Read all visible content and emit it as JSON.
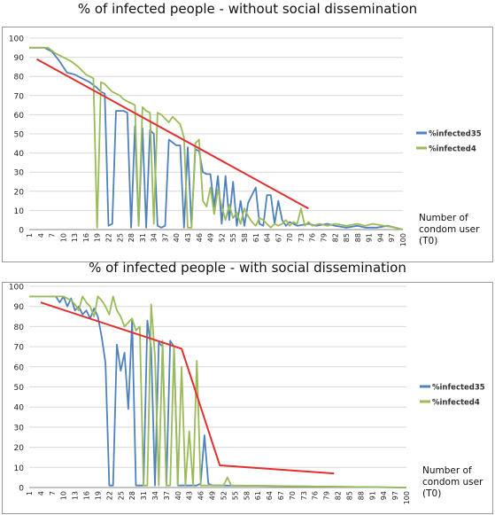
{
  "chart_data": [
    {
      "type": "line",
      "title": "% of infected people - without social dissemination",
      "xlabel": "Number of condom user (T0)",
      "ylabel": "",
      "ylim": [
        0,
        100
      ],
      "yticks": [
        0,
        10,
        20,
        30,
        40,
        50,
        60,
        70,
        80,
        90,
        100
      ],
      "xticks": [
        1,
        4,
        7,
        10,
        13,
        16,
        19,
        22,
        25,
        28,
        31,
        34,
        37,
        40,
        43,
        46,
        49,
        52,
        55,
        58,
        61,
        64,
        67,
        70,
        73,
        76,
        79,
        82,
        85,
        88,
        91,
        94,
        97,
        100
      ],
      "grid": true,
      "legend_position": "right",
      "series": [
        {
          "name": "%infected35",
          "color": "#4f81bd",
          "points": [
            [
              1,
              95
            ],
            [
              5,
              95
            ],
            [
              7,
              93
            ],
            [
              9,
              88
            ],
            [
              11,
              82
            ],
            [
              13,
              81
            ],
            [
              15,
              79
            ],
            [
              17,
              77
            ],
            [
              19,
              74
            ],
            [
              20,
              72
            ],
            [
              21,
              71
            ],
            [
              22,
              2
            ],
            [
              23,
              3
            ],
            [
              24,
              62
            ],
            [
              26,
              62
            ],
            [
              27,
              61
            ],
            [
              28,
              1
            ],
            [
              29,
              54
            ],
            [
              30,
              2
            ],
            [
              31,
              53
            ],
            [
              32,
              1
            ],
            [
              33,
              52
            ],
            [
              34,
              50
            ],
            [
              35,
              2
            ],
            [
              36,
              1
            ],
            [
              37,
              2
            ],
            [
              38,
              47
            ],
            [
              40,
              44
            ],
            [
              41,
              44
            ],
            [
              42,
              1
            ],
            [
              43,
              43
            ],
            [
              44,
              2
            ],
            [
              45,
              42
            ],
            [
              46,
              41
            ],
            [
              47,
              30
            ],
            [
              48,
              29
            ],
            [
              49,
              29
            ],
            [
              50,
              12
            ],
            [
              51,
              28
            ],
            [
              52,
              3
            ],
            [
              53,
              28
            ],
            [
              54,
              5
            ],
            [
              55,
              25
            ],
            [
              56,
              2
            ],
            [
              57,
              15
            ],
            [
              58,
              2
            ],
            [
              59,
              14
            ],
            [
              60,
              18
            ],
            [
              61,
              22
            ],
            [
              62,
              3
            ],
            [
              63,
              2
            ],
            [
              64,
              18
            ],
            [
              65,
              18
            ],
            [
              66,
              3
            ],
            [
              67,
              15
            ],
            [
              68,
              5
            ],
            [
              69,
              2
            ],
            [
              70,
              4
            ],
            [
              72,
              2
            ],
            [
              75,
              3
            ],
            [
              77,
              2
            ],
            [
              80,
              3
            ],
            [
              82,
              2
            ],
            [
              85,
              1
            ],
            [
              88,
              2
            ],
            [
              90,
              1
            ],
            [
              93,
              1
            ],
            [
              96,
              2
            ],
            [
              100,
              0
            ]
          ]
        },
        {
          "name": "%infected4",
          "color": "#9bbb59",
          "points": [
            [
              1,
              95
            ],
            [
              6,
              95
            ],
            [
              8,
              92
            ],
            [
              10,
              90
            ],
            [
              12,
              88
            ],
            [
              14,
              85
            ],
            [
              16,
              81
            ],
            [
              18,
              79
            ],
            [
              19,
              1
            ],
            [
              20,
              77
            ],
            [
              21,
              76
            ],
            [
              22,
              74
            ],
            [
              23,
              72
            ],
            [
              25,
              70
            ],
            [
              26,
              68
            ],
            [
              27,
              67
            ],
            [
              28,
              66
            ],
            [
              29,
              65
            ],
            [
              30,
              2
            ],
            [
              31,
              64
            ],
            [
              32,
              62
            ],
            [
              33,
              61
            ],
            [
              34,
              3
            ],
            [
              35,
              61
            ],
            [
              36,
              60
            ],
            [
              37,
              58
            ],
            [
              38,
              56
            ],
            [
              39,
              59
            ],
            [
              40,
              57
            ],
            [
              41,
              55
            ],
            [
              42,
              48
            ],
            [
              43,
              1
            ],
            [
              44,
              1
            ],
            [
              45,
              45
            ],
            [
              46,
              47
            ],
            [
              47,
              15
            ],
            [
              48,
              12
            ],
            [
              49,
              22
            ],
            [
              50,
              8
            ],
            [
              51,
              21
            ],
            [
              52,
              12
            ],
            [
              53,
              5
            ],
            [
              54,
              13
            ],
            [
              55,
              6
            ],
            [
              56,
              9
            ],
            [
              57,
              3
            ],
            [
              58,
              11
            ],
            [
              59,
              7
            ],
            [
              60,
              4
            ],
            [
              61,
              2
            ],
            [
              62,
              6
            ],
            [
              63,
              5
            ],
            [
              64,
              3
            ],
            [
              65,
              1
            ],
            [
              66,
              3
            ],
            [
              67,
              2
            ],
            [
              68,
              3
            ],
            [
              69,
              5
            ],
            [
              70,
              2
            ],
            [
              71,
              4
            ],
            [
              72,
              3
            ],
            [
              73,
              11
            ],
            [
              74,
              2
            ],
            [
              75,
              4
            ],
            [
              76,
              2
            ],
            [
              78,
              3
            ],
            [
              80,
              2
            ],
            [
              82,
              3
            ],
            [
              85,
              2
            ],
            [
              88,
              3
            ],
            [
              90,
              2
            ],
            [
              92,
              3
            ],
            [
              95,
              2
            ],
            [
              98,
              1
            ],
            [
              100,
              0
            ]
          ]
        },
        {
          "name": "",
          "color": "#e03030",
          "legend": false,
          "points": [
            [
              3,
              89
            ],
            [
              75,
              11
            ]
          ]
        }
      ]
    },
    {
      "type": "line",
      "title": "% of infected people - with social dissemination",
      "xlabel": "Number of condom user (T0)",
      "ylabel": "",
      "ylim": [
        0,
        100
      ],
      "yticks": [
        0,
        10,
        20,
        30,
        40,
        50,
        60,
        70,
        80,
        90,
        100
      ],
      "xticks": [
        1,
        4,
        7,
        10,
        13,
        16,
        19,
        22,
        25,
        28,
        31,
        34,
        37,
        40,
        43,
        46,
        49,
        52,
        55,
        58,
        61,
        64,
        67,
        70,
        73,
        76,
        79,
        82,
        85,
        88,
        91,
        94,
        97,
        100
      ],
      "grid": true,
      "legend_position": "right",
      "series": [
        {
          "name": "%infected35",
          "color": "#4f81bd",
          "points": [
            [
              1,
              95
            ],
            [
              8,
              95
            ],
            [
              9,
              92
            ],
            [
              10,
              95
            ],
            [
              11,
              90
            ],
            [
              12,
              94
            ],
            [
              13,
              88
            ],
            [
              14,
              90
            ],
            [
              15,
              86
            ],
            [
              16,
              88
            ],
            [
              17,
              84
            ],
            [
              18,
              89
            ],
            [
              19,
              85
            ],
            [
              20,
              75
            ],
            [
              21,
              62
            ],
            [
              22,
              1
            ],
            [
              23,
              1
            ],
            [
              24,
              71
            ],
            [
              25,
              58
            ],
            [
              26,
              67
            ],
            [
              27,
              39
            ],
            [
              28,
              83
            ],
            [
              29,
              1
            ],
            [
              30,
              1
            ],
            [
              31,
              1
            ],
            [
              32,
              83
            ],
            [
              33,
              69
            ],
            [
              34,
              1
            ],
            [
              35,
              72
            ],
            [
              36,
              70
            ],
            [
              37,
              1
            ],
            [
              38,
              73
            ],
            [
              39,
              70
            ],
            [
              40,
              1
            ],
            [
              41,
              1
            ],
            [
              45,
              1
            ],
            [
              46,
              2
            ],
            [
              47,
              26
            ],
            [
              48,
              2
            ],
            [
              49,
              1
            ],
            [
              52,
              1
            ],
            [
              100,
              0
            ]
          ]
        },
        {
          "name": "%infected4",
          "color": "#9bbb59",
          "points": [
            [
              1,
              95
            ],
            [
              10,
              95
            ],
            [
              12,
              93
            ],
            [
              13,
              91
            ],
            [
              14,
              88
            ],
            [
              15,
              95
            ],
            [
              16,
              92
            ],
            [
              17,
              90
            ],
            [
              18,
              85
            ],
            [
              19,
              95
            ],
            [
              20,
              93
            ],
            [
              21,
              90
            ],
            [
              22,
              86
            ],
            [
              23,
              95
            ],
            [
              24,
              88
            ],
            [
              25,
              85
            ],
            [
              26,
              80
            ],
            [
              27,
              82
            ],
            [
              28,
              84
            ],
            [
              29,
              78
            ],
            [
              30,
              80
            ],
            [
              31,
              1
            ],
            [
              32,
              1
            ],
            [
              33,
              91
            ],
            [
              34,
              65
            ],
            [
              35,
              1
            ],
            [
              36,
              73
            ],
            [
              37,
              1
            ],
            [
              38,
              1
            ],
            [
              39,
              70
            ],
            [
              40,
              1
            ],
            [
              41,
              60
            ],
            [
              42,
              1
            ],
            [
              43,
              28
            ],
            [
              44,
              1
            ],
            [
              45,
              63
            ],
            [
              46,
              1
            ],
            [
              47,
              1
            ],
            [
              52,
              1
            ],
            [
              53,
              5
            ],
            [
              54,
              1
            ],
            [
              100,
              0
            ]
          ]
        },
        {
          "name": "",
          "color": "#e03030",
          "legend": false,
          "points": [
            [
              4,
              92
            ],
            [
              41,
              69
            ],
            [
              51,
              11
            ],
            [
              81,
              7
            ]
          ]
        }
      ]
    }
  ]
}
